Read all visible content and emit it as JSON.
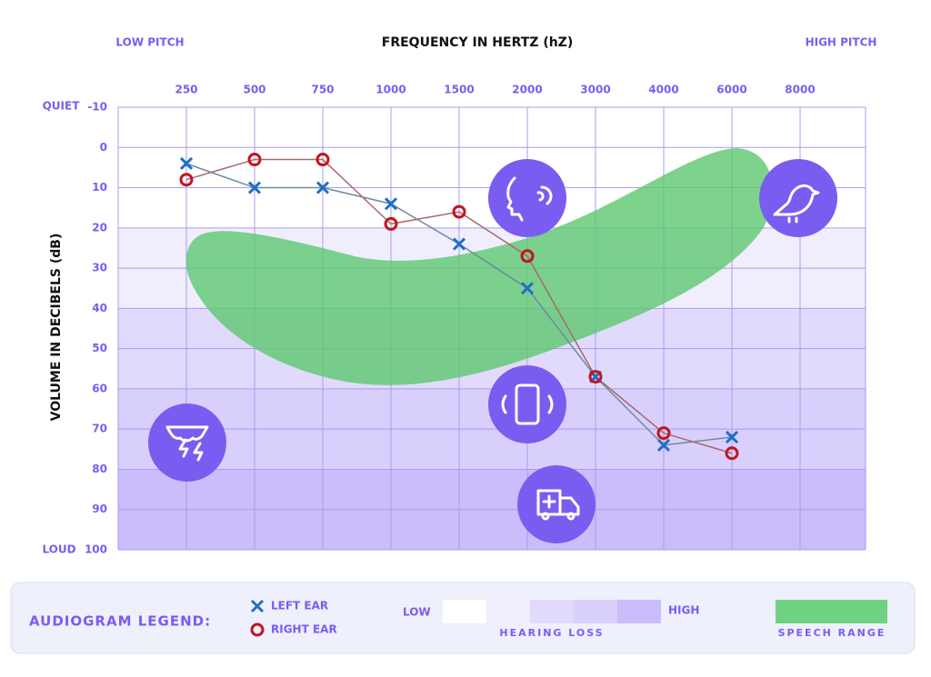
{
  "chart_data": {
    "type": "audiogram",
    "title": "FREQUENCY IN HERTZ (hZ)",
    "low_pitch_label": "LOW PITCH",
    "high_pitch_label": "HIGH PITCH",
    "y_label": "VOLUME IN DECIBELS (dB)",
    "quiet_label": "QUIET",
    "loud_label": "LOUD",
    "categories": [
      "250",
      "500",
      "750",
      "1000",
      "1500",
      "2000",
      "3000",
      "4000",
      "6000",
      "8000"
    ],
    "series": [
      {
        "name": "LEFT EAR",
        "marker": "x",
        "color": "#1f6fc5",
        "line_color": "#6f8aa0",
        "values": [
          4,
          10,
          10,
          14,
          24,
          35,
          57,
          74,
          72,
          null
        ]
      },
      {
        "name": "RIGHT EAR",
        "marker": "o",
        "color": "#c0161e",
        "line_color": "#a86a6a",
        "values": [
          8,
          3,
          3,
          19,
          16,
          27,
          57,
          71,
          76,
          null
        ]
      }
    ],
    "ylim": [
      -10,
      100
    ],
    "yticks": [
      -10,
      0,
      10,
      20,
      30,
      40,
      50,
      60,
      70,
      80,
      90,
      100
    ],
    "y_inverted": true,
    "grid": true,
    "loss_bands": [
      {
        "from": -10,
        "to": 20,
        "color": "#ffffff"
      },
      {
        "from": 20,
        "to": 40,
        "color": "#f0eefd"
      },
      {
        "from": 40,
        "to": 60,
        "color": "#e2dafc"
      },
      {
        "from": 60,
        "to": 80,
        "color": "#d9cffc"
      },
      {
        "from": 80,
        "to": 100,
        "color": "#cbbcfb"
      }
    ],
    "legend": {
      "title": "AUDIOGRAM LEGEND:",
      "low": "LOW",
      "high": "HIGH",
      "hearing_loss": "HEARING LOSS",
      "speech_range": "SPEECH RANGE",
      "speech_color": "#6fd281"
    }
  }
}
